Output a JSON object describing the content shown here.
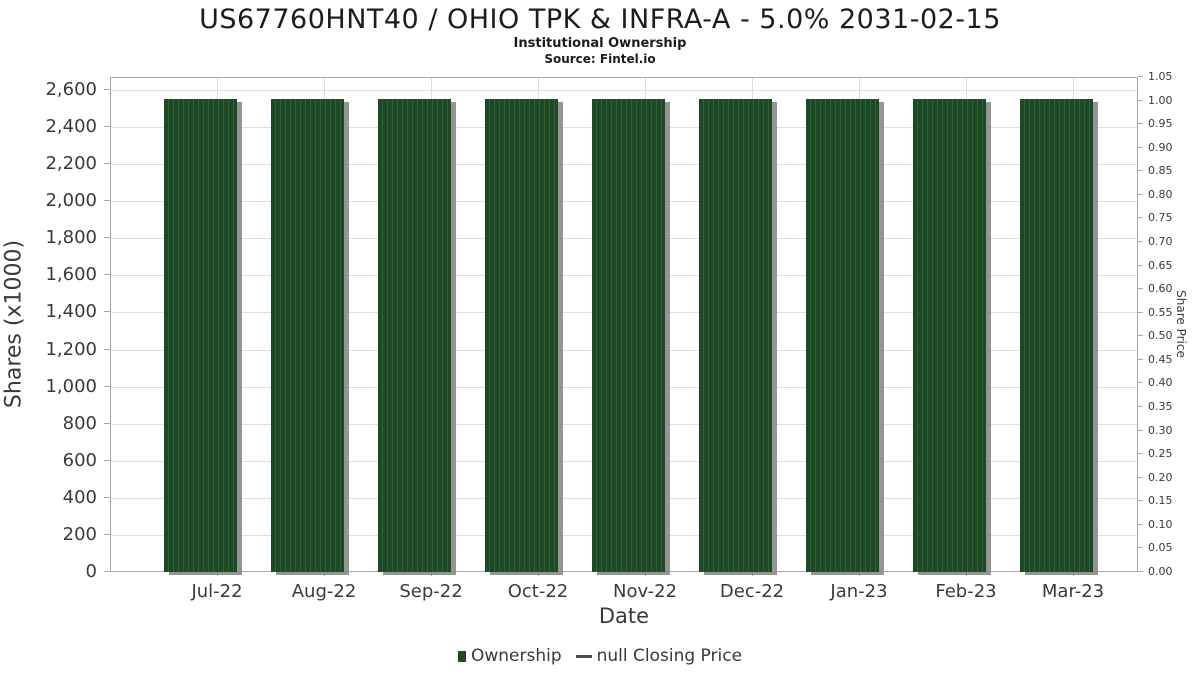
{
  "header": {
    "title": "US67760HNT40 / OHIO TPK & INFRA-A - 5.0% 2031-02-15",
    "subtitle": "Institutional Ownership",
    "source": "Source: Fintel.io"
  },
  "chart_data": {
    "type": "bar",
    "title": "US67760HNT40 / OHIO TPK & INFRA-A - 5.0% 2031-02-15",
    "subtitle": "Institutional Ownership",
    "source": "Source: Fintel.io",
    "categories": [
      "Jul-22",
      "Aug-22",
      "Sep-22",
      "Oct-22",
      "Nov-22",
      "Dec-22",
      "Jan-23",
      "Feb-23",
      "Mar-23"
    ],
    "series": [
      {
        "name": "Ownership",
        "type": "bar",
        "color": "#1d4a24",
        "units": "Shares (x1000)",
        "values": [
          2550,
          2550,
          2550,
          2550,
          2550,
          2550,
          2550,
          2550,
          2550
        ]
      },
      {
        "name": "null Closing Price",
        "type": "line",
        "color": "#4d4d4d",
        "units": "Share Price",
        "values": []
      }
    ],
    "xlabel": "Date",
    "y_left": {
      "label": "Shares (x1000)",
      "min": 0,
      "max": 2600,
      "tick_step": 200,
      "ticks": [
        "0",
        "200",
        "400",
        "600",
        "800",
        "1,000",
        "1,200",
        "1,400",
        "1,600",
        "1,800",
        "2,000",
        "2,200",
        "2,400",
        "2,600"
      ]
    },
    "y_right": {
      "label": "Share Price",
      "min": 0,
      "max": 1.05,
      "tick_step": 0.05,
      "ticks": [
        "0.00",
        "0.05",
        "0.10",
        "0.15",
        "0.20",
        "0.25",
        "0.30",
        "0.35",
        "0.40",
        "0.45",
        "0.50",
        "0.55",
        "0.60",
        "0.65",
        "0.70",
        "0.75",
        "0.80",
        "0.85",
        "0.90",
        "0.95",
        "1.00",
        "1.05"
      ]
    },
    "grid": true,
    "legend_position": "bottom"
  },
  "legend": {
    "items": [
      {
        "label": "Ownership",
        "marker": "square",
        "color": "#1d4a24"
      },
      {
        "label": "null Closing Price",
        "marker": "line",
        "color": "#4d4d4d"
      }
    ]
  }
}
